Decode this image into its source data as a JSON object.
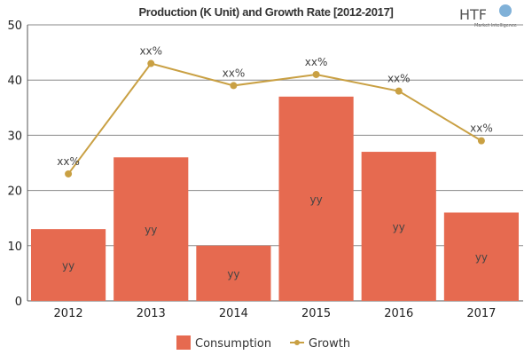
{
  "chart_data": {
    "type": "bar",
    "title": "Production (K Unit) and Growth Rate [2012-2017]",
    "categories": [
      "2012",
      "2013",
      "2014",
      "2015",
      "2016",
      "2017"
    ],
    "series": [
      {
        "name": "Consumption",
        "type": "bar",
        "values": [
          13,
          26,
          10,
          37,
          27,
          16
        ],
        "color": "#e66a50",
        "data_labels": [
          "yy",
          "yy",
          "yy",
          "yy",
          "yy",
          "yy"
        ]
      },
      {
        "name": "Growth",
        "type": "line",
        "values": [
          23,
          43,
          39,
          41,
          38,
          29
        ],
        "color": "#c9a043",
        "data_labels": [
          "xx%",
          "xx%",
          "xx%",
          "xx%",
          "xx%",
          "xx%"
        ]
      }
    ],
    "xlabel": "",
    "ylabel": "",
    "ylim": [
      0,
      50
    ],
    "yticks": [
      0,
      10,
      20,
      30,
      40,
      50
    ],
    "grid": true,
    "legend": "bottom"
  },
  "logo": {
    "text": "HTF",
    "subtext": "Market Intelligence"
  }
}
